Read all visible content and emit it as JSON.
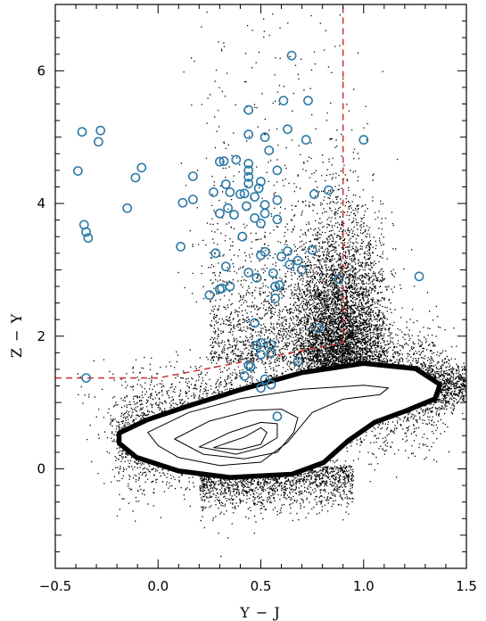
{
  "chart_data": {
    "type": "scatter",
    "xlabel": "Y − J",
    "ylabel": "Z − Y",
    "xlim": [
      -0.5,
      1.5
    ],
    "ylim": [
      -1.5,
      7.0
    ],
    "x_ticks": [
      -0.5,
      0.0,
      0.5,
      1.0,
      1.5
    ],
    "x_tick_labels": [
      "−0.5",
      "0.0",
      "0.5",
      "1.0",
      "1.5"
    ],
    "y_ticks": [
      0,
      2,
      4,
      6
    ],
    "y_tick_labels": [
      "0",
      "2",
      "4",
      "6"
    ],
    "grid": false,
    "colors": {
      "points": "#000000",
      "circles": "#2e7ba6",
      "cut_line": "#cc3333",
      "contours": "#000000",
      "core": "#000000"
    },
    "cut_line": [
      [
        -0.5,
        1.37
      ],
      [
        0.0,
        1.37
      ],
      [
        0.9,
        1.9
      ],
      [
        0.9,
        7.0
      ]
    ],
    "highlighted": [
      [
        -0.37,
        5.08
      ],
      [
        -0.29,
        4.93
      ],
      [
        -0.28,
        5.1
      ],
      [
        -0.39,
        4.49
      ],
      [
        -0.08,
        4.54
      ],
      [
        -0.11,
        4.39
      ],
      [
        -0.15,
        3.93
      ],
      [
        -0.36,
        3.68
      ],
      [
        -0.35,
        3.57
      ],
      [
        -0.34,
        3.48
      ],
      [
        -0.35,
        1.37
      ],
      [
        0.12,
        4.01
      ],
      [
        0.17,
        4.06
      ],
      [
        0.17,
        4.41
      ],
      [
        0.3,
        4.63
      ],
      [
        0.32,
        4.64
      ],
      [
        0.38,
        4.66
      ],
      [
        0.44,
        4.6
      ],
      [
        0.27,
        4.17
      ],
      [
        0.33,
        4.29
      ],
      [
        0.35,
        4.17
      ],
      [
        0.4,
        4.14
      ],
      [
        0.44,
        4.3
      ],
      [
        0.44,
        4.5
      ],
      [
        0.44,
        4.4
      ],
      [
        0.5,
        4.33
      ],
      [
        0.49,
        4.23
      ],
      [
        0.58,
        4.5
      ],
      [
        0.44,
        5.41
      ],
      [
        0.52,
        5.0
      ],
      [
        0.44,
        5.04
      ],
      [
        0.61,
        5.55
      ],
      [
        0.65,
        6.23
      ],
      [
        0.73,
        5.55
      ],
      [
        0.63,
        5.12
      ],
      [
        0.72,
        4.96
      ],
      [
        0.76,
        4.14
      ],
      [
        0.83,
        4.2
      ],
      [
        1.0,
        4.96
      ],
      [
        0.54,
        4.8
      ],
      [
        0.42,
        4.15
      ],
      [
        0.47,
        4.1
      ],
      [
        0.3,
        3.85
      ],
      [
        0.34,
        3.93
      ],
      [
        0.37,
        3.83
      ],
      [
        0.47,
        3.78
      ],
      [
        0.5,
        3.7
      ],
      [
        0.52,
        3.98
      ],
      [
        0.58,
        4.05
      ],
      [
        0.58,
        3.76
      ],
      [
        0.43,
        3.96
      ],
      [
        0.52,
        3.85
      ],
      [
        0.41,
        3.5
      ],
      [
        0.11,
        3.35
      ],
      [
        0.28,
        3.25
      ],
      [
        0.33,
        3.05
      ],
      [
        0.5,
        3.22
      ],
      [
        0.52,
        3.27
      ],
      [
        0.6,
        3.2
      ],
      [
        0.63,
        3.28
      ],
      [
        0.68,
        3.14
      ],
      [
        0.75,
        3.3
      ],
      [
        0.64,
        3.08
      ],
      [
        0.7,
        3.0
      ],
      [
        0.44,
        2.96
      ],
      [
        0.56,
        2.95
      ],
      [
        0.3,
        2.71
      ],
      [
        0.35,
        2.75
      ],
      [
        0.48,
        2.88
      ],
      [
        0.57,
        2.75
      ],
      [
        0.59,
        2.77
      ],
      [
        0.25,
        2.62
      ],
      [
        0.31,
        2.72
      ],
      [
        0.57,
        2.57
      ],
      [
        0.88,
        2.86
      ],
      [
        1.27,
        2.9
      ],
      [
        0.47,
        2.2
      ],
      [
        0.78,
        2.12
      ],
      [
        0.48,
        1.86
      ],
      [
        0.5,
        1.9
      ],
      [
        0.55,
        1.87
      ],
      [
        0.44,
        1.56
      ],
      [
        0.45,
        1.54
      ],
      [
        0.55,
        1.75
      ],
      [
        0.5,
        1.72
      ],
      [
        0.68,
        1.62
      ],
      [
        0.42,
        1.4
      ],
      [
        0.52,
        1.35
      ],
      [
        0.5,
        1.22
      ],
      [
        0.55,
        1.27
      ],
      [
        0.58,
        0.79
      ]
    ],
    "contours": [
      [
        [
          -0.18,
          0.52
        ],
        [
          -0.05,
          0.71
        ],
        [
          0.15,
          0.92
        ],
        [
          0.4,
          1.16
        ],
        [
          0.7,
          1.42
        ],
        [
          1.0,
          1.56
        ],
        [
          1.25,
          1.48
        ],
        [
          1.36,
          1.26
        ],
        [
          1.34,
          1.08
        ],
        [
          1.2,
          0.9
        ],
        [
          1.05,
          0.73
        ],
        [
          0.92,
          0.45
        ],
        [
          0.8,
          0.12
        ],
        [
          0.65,
          -0.05
        ],
        [
          0.35,
          -0.1
        ],
        [
          0.1,
          0.0
        ],
        [
          -0.1,
          0.2
        ],
        [
          -0.18,
          0.4
        ]
      ],
      [
        [
          -0.05,
          0.55
        ],
        [
          0.15,
          0.85
        ],
        [
          0.4,
          1.06
        ],
        [
          0.7,
          1.2
        ],
        [
          1.0,
          1.26
        ],
        [
          1.12,
          1.22
        ],
        [
          1.08,
          1.12
        ],
        [
          0.9,
          1.05
        ],
        [
          0.75,
          0.85
        ],
        [
          0.63,
          0.4
        ],
        [
          0.5,
          0.1
        ],
        [
          0.3,
          0.05
        ],
        [
          0.1,
          0.17
        ],
        [
          0.0,
          0.35
        ]
      ],
      [
        [
          0.08,
          0.45
        ],
        [
          0.25,
          0.72
        ],
        [
          0.45,
          0.88
        ],
        [
          0.6,
          0.9
        ],
        [
          0.68,
          0.77
        ],
        [
          0.66,
          0.55
        ],
        [
          0.58,
          0.25
        ],
        [
          0.42,
          0.15
        ],
        [
          0.22,
          0.22
        ]
      ],
      [
        [
          0.2,
          0.33
        ],
        [
          0.35,
          0.55
        ],
        [
          0.5,
          0.7
        ],
        [
          0.58,
          0.68
        ],
        [
          0.58,
          0.47
        ],
        [
          0.5,
          0.32
        ],
        [
          0.38,
          0.22
        ]
      ],
      [
        [
          0.27,
          0.32
        ],
        [
          0.42,
          0.48
        ],
        [
          0.5,
          0.62
        ],
        [
          0.53,
          0.55
        ],
        [
          0.5,
          0.37
        ],
        [
          0.4,
          0.29
        ]
      ]
    ]
  }
}
